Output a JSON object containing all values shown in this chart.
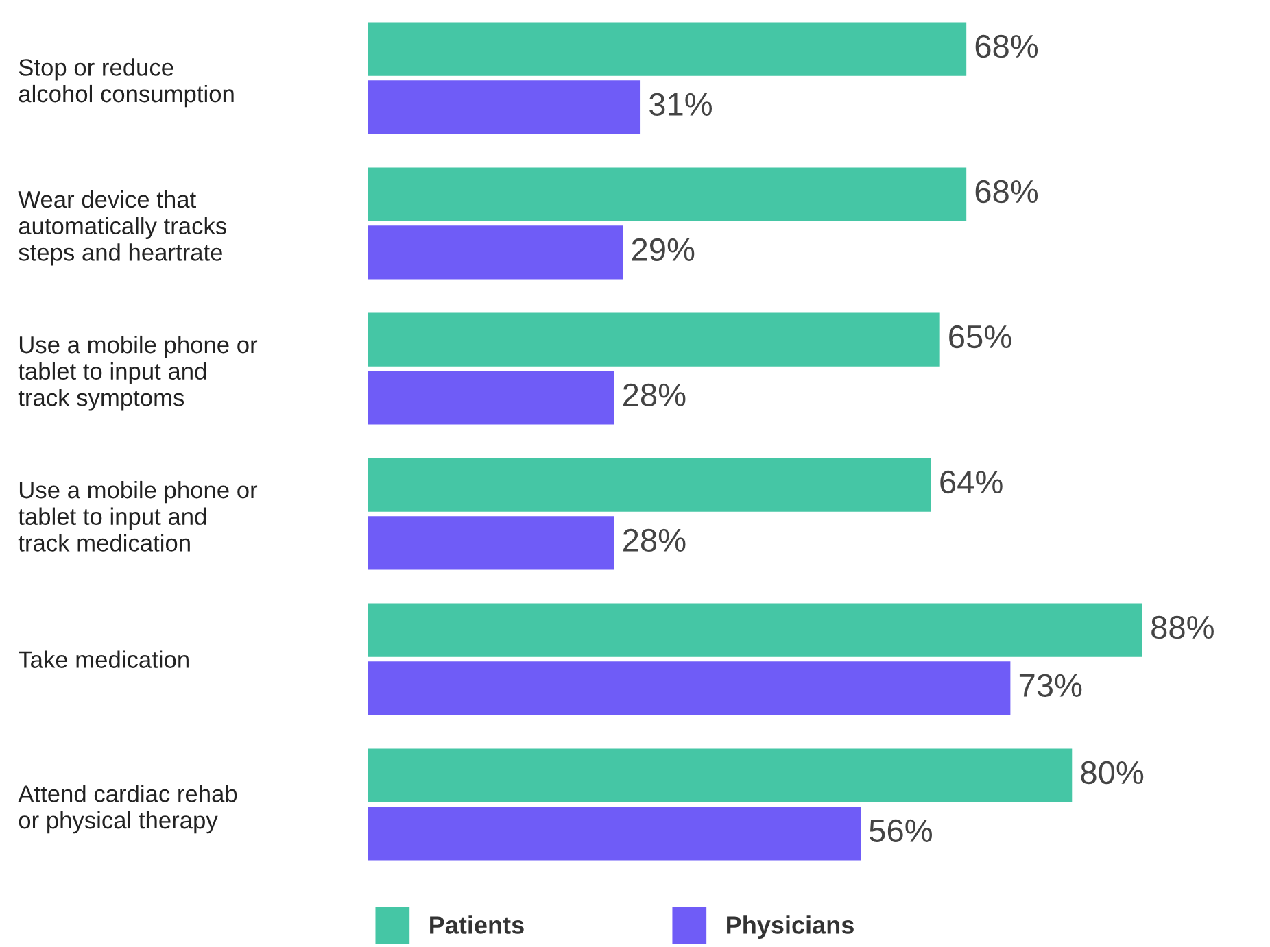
{
  "chart_data": {
    "type": "bar",
    "orientation": "horizontal",
    "categories": [
      "Stop or reduce\nalcohol consumption",
      "Wear device that\nautomatically tracks\nsteps and heartrate",
      "Use a mobile phone or\ntablet to input and\ntrack symptoms",
      "Use a mobile phone or\ntablet to input and\ntrack medication",
      "Take medication",
      "Attend cardiac rehab\nor physical therapy"
    ],
    "series": [
      {
        "name": "Patients",
        "color": "#45c6a5",
        "values": [
          68,
          68,
          65,
          64,
          88,
          80
        ],
        "value_labels": [
          "68%",
          "68%",
          "65%",
          "64%",
          "88%",
          "80%"
        ]
      },
      {
        "name": "Physicians",
        "color": "#6f5cf7",
        "values": [
          31,
          29,
          28,
          28,
          73,
          56
        ],
        "value_labels": [
          "31%",
          "29%",
          "28%",
          "28%",
          "73%",
          "56%"
        ]
      }
    ],
    "tick_labels": "y",
    "grid": false,
    "legend": "bottom"
  }
}
